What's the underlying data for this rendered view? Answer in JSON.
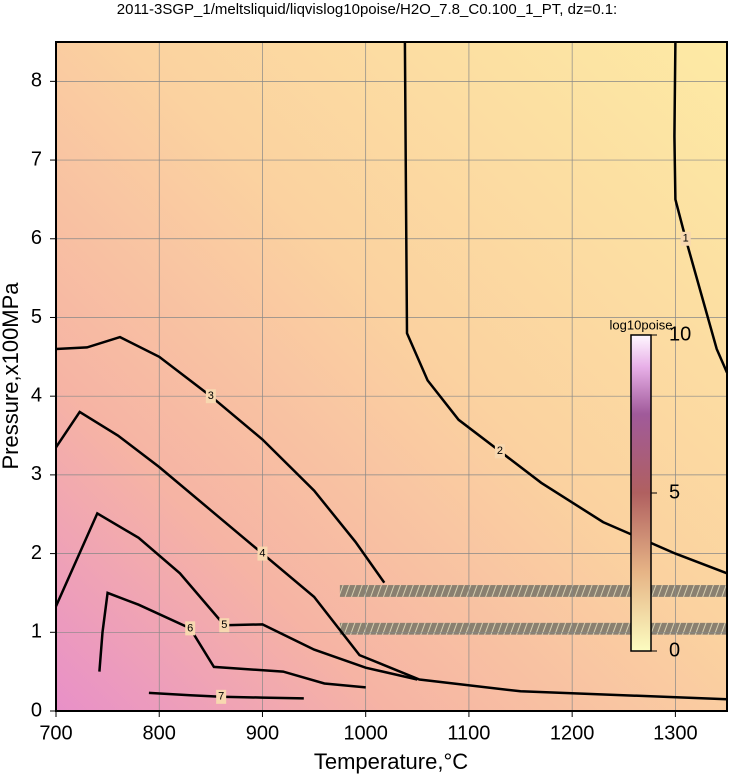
{
  "chart_data": {
    "type": "contour",
    "title": "2011-3SGP_1/meltsliquid/liqvislog10poise/H2O_7.8_C0.100_1_PT, dz=0.1:",
    "x_label": "Temperature,°C",
    "y_label": "Pressure,x100MPa",
    "xlim": [
      700,
      1350
    ],
    "ylim": [
      0,
      8.5
    ],
    "xticks": [
      700,
      800,
      900,
      1000,
      1100,
      1200,
      1300
    ],
    "yticks": [
      0,
      1,
      2,
      3,
      4,
      5,
      6,
      7,
      8
    ],
    "grid": true,
    "colorbar": {
      "label": "log10poise",
      "lim": [
        0,
        10
      ],
      "ticks": [
        0,
        5,
        10
      ]
    },
    "contours": [
      {
        "level": 1,
        "x": [
          1300,
          1299,
          1300,
          1310,
          1325,
          1340,
          1350
        ],
        "y": [
          8.5,
          7.3,
          6.5,
          6.0,
          5.3,
          4.6,
          4.3
        ]
      },
      {
        "level": 2,
        "x": [
          1038,
          1039,
          1040,
          1060,
          1090,
          1130,
          1170,
          1230,
          1300,
          1350
        ],
        "y": [
          8.5,
          6.5,
          4.8,
          4.2,
          3.7,
          3.3,
          2.9,
          2.4,
          2.0,
          1.75
        ]
      },
      {
        "level": 3,
        "x": [
          700,
          730,
          762,
          800,
          850,
          900,
          950,
          990,
          1018
        ],
        "y": [
          4.6,
          4.62,
          4.75,
          4.5,
          4.0,
          3.45,
          2.8,
          2.15,
          1.63
        ]
      },
      {
        "level": 4,
        "x": [
          700,
          723,
          760,
          800,
          850,
          900,
          950,
          994,
          1052,
          1150,
          1350
        ],
        "y": [
          3.35,
          3.8,
          3.5,
          3.1,
          2.55,
          2.0,
          1.45,
          0.71,
          0.4,
          0.25,
          0.15
        ]
      },
      {
        "level": 5,
        "x": [
          700,
          740,
          780,
          820,
          863,
          900,
          950,
          1000,
          1050
        ],
        "y": [
          1.33,
          2.51,
          2.2,
          1.75,
          1.09,
          1.1,
          0.78,
          0.55,
          0.4
        ]
      },
      {
        "level": 6,
        "x": [
          742,
          745,
          750,
          780,
          830,
          853,
          920,
          960,
          1000
        ],
        "y": [
          0.5,
          1.0,
          1.5,
          1.35,
          1.05,
          0.56,
          0.5,
          0.35,
          0.3
        ]
      },
      {
        "level": 7,
        "x": [
          790,
          830,
          860,
          900,
          940
        ],
        "y": [
          0.23,
          0.2,
          0.18,
          0.17,
          0.16
        ]
      }
    ]
  }
}
